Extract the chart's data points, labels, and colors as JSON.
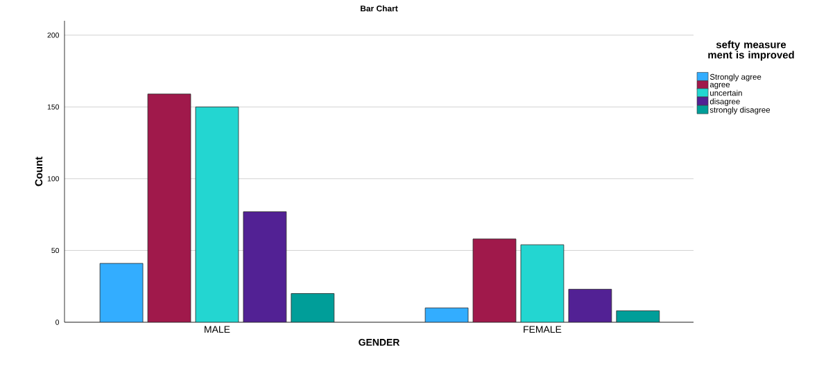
{
  "chart_data": {
    "type": "bar",
    "title": "Bar Chart",
    "xlabel": "GENDER",
    "ylabel": "Count",
    "legend_title": "sefty measure ment is improved",
    "categories": [
      "MALE",
      "FEMALE"
    ],
    "series": [
      {
        "name": "Strongly agree",
        "color": "#33adff",
        "values": [
          41,
          10
        ]
      },
      {
        "name": "agree",
        "color": "#a0194b",
        "values": [
          159,
          58
        ]
      },
      {
        "name": "uncertain",
        "color": "#23d6d1",
        "values": [
          150,
          54
        ]
      },
      {
        "name": "disagree",
        "color": "#522194",
        "values": [
          77,
          23
        ]
      },
      {
        "name": "strongly disagree",
        "color": "#009e99",
        "values": [
          20,
          8
        ]
      }
    ],
    "ylim": [
      0,
      210
    ],
    "yticks": [
      0,
      50,
      100,
      150,
      200
    ],
    "grid": "y",
    "legend": "right"
  }
}
